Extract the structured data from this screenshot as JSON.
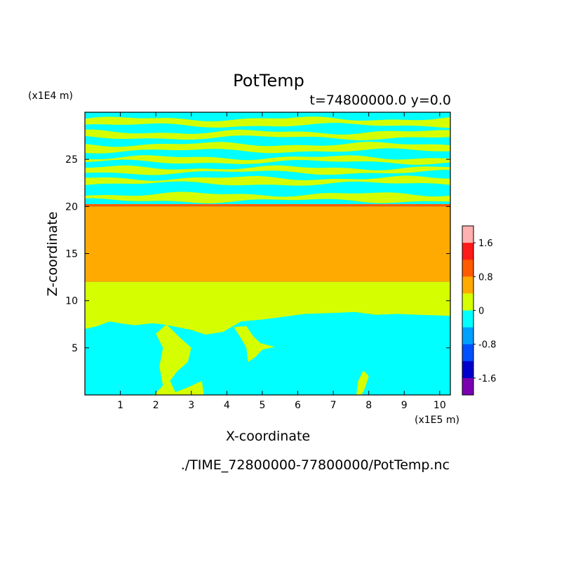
{
  "chart_data": {
    "type": "heatmap",
    "title": "PotTemp",
    "subtitle": "t=74800000.0  y=0.0",
    "xlabel": "X-coordinate",
    "ylabel": "Z-coordinate",
    "x_unit": "(x1E5 m)",
    "y_unit": "(x1E4 m)",
    "xlim": [
      0,
      10.3
    ],
    "ylim": [
      0,
      30
    ],
    "x_ticks": [
      "1",
      "2",
      "3",
      "4",
      "5",
      "6",
      "7",
      "8",
      "9",
      "10"
    ],
    "y_ticks": [
      "5",
      "10",
      "15",
      "20",
      "25"
    ],
    "file_label": "./TIME_72800000-77800000/PotTemp.nc",
    "colorbar": {
      "labels": [
        "1.6",
        "0.8",
        "0",
        "-0.8",
        "-1.6"
      ],
      "levels": [
        {
          "range": [
            1.6,
            2.0
          ],
          "color": "#ffb0b0"
        },
        {
          "range": [
            1.2,
            1.6
          ],
          "color": "#ff1a1a"
        },
        {
          "range": [
            0.8,
            1.2
          ],
          "color": "#ff5a00"
        },
        {
          "range": [
            0.4,
            0.8
          ],
          "color": "#ffaa00"
        },
        {
          "range": [
            0.0,
            0.4
          ],
          "color": "#d5ff00"
        },
        {
          "range": [
            -0.4,
            0.0
          ],
          "color": "#00ffff"
        },
        {
          "range": [
            -0.8,
            -0.4
          ],
          "color": "#00a0ff"
        },
        {
          "range": [
            -1.2,
            -0.8
          ],
          "color": "#0050ff"
        },
        {
          "range": [
            -1.6,
            -1.2
          ],
          "color": "#0000cc"
        },
        {
          "range": [
            -2.0,
            -1.6
          ],
          "color": "#7a00b0"
        }
      ]
    },
    "regions": [
      {
        "name": "upper-banded-layer",
        "z_range": [
          20.2,
          30
        ],
        "values": "alternating cyan (-0.4 to 0) and yellow-green (0 to 0.4) horizontal bands"
      },
      {
        "name": "thin-red-orange-layer",
        "z_range": [
          20.0,
          20.2
        ],
        "level": "0.8 to 1.2"
      },
      {
        "name": "orange-layer",
        "z_range": [
          12,
          20
        ],
        "level": "0.4 to 0.8"
      },
      {
        "name": "yellow-green-layer",
        "z_range": [
          7,
          12
        ],
        "level": "0 to 0.4"
      },
      {
        "name": "lower-cyan-layer",
        "z_range": [
          0,
          8.5
        ],
        "level": "-0.4 to 0"
      }
    ],
    "yellow_bands_z": [
      [
        28.6,
        29.3
      ],
      [
        27.3,
        27.9
      ],
      [
        25.9,
        26.6
      ],
      [
        24.7,
        25.2
      ],
      [
        23.6,
        24.1
      ],
      [
        22.4,
        23.0
      ],
      [
        20.6,
        21.3
      ]
    ],
    "cyan_layer_top_z": [
      [
        0.0,
        7.0
      ],
      [
        0.35,
        7.3
      ],
      [
        0.7,
        7.8
      ],
      [
        1.0,
        7.6
      ],
      [
        1.4,
        7.4
      ],
      [
        1.9,
        7.6
      ],
      [
        2.2,
        7.5
      ],
      [
        2.6,
        7.2
      ],
      [
        3.0,
        6.9
      ],
      [
        3.4,
        6.4
      ],
      [
        3.9,
        6.7
      ],
      [
        4.4,
        7.8
      ],
      [
        5.0,
        8.0
      ],
      [
        5.6,
        8.3
      ],
      [
        6.2,
        8.6
      ],
      [
        7.0,
        8.7
      ],
      [
        7.6,
        8.8
      ],
      [
        8.2,
        8.5
      ],
      [
        8.8,
        8.6
      ],
      [
        9.4,
        8.5
      ],
      [
        10.3,
        8.4
      ]
    ],
    "yellow_intrusions": [
      {
        "name": "intrusion-x2-3",
        "outline": [
          [
            2.0,
            6.5
          ],
          [
            2.3,
            7.5
          ],
          [
            2.7,
            6.0
          ],
          [
            3.0,
            5.0
          ],
          [
            2.9,
            3.5
          ],
          [
            2.6,
            2.5
          ],
          [
            2.4,
            1.5
          ],
          [
            2.55,
            0.3
          ],
          [
            2.9,
            0.8
          ],
          [
            3.3,
            1.5
          ],
          [
            3.35,
            0.0
          ],
          [
            1.95,
            0.0
          ],
          [
            2.2,
            1.0
          ],
          [
            2.1,
            3.0
          ],
          [
            2.2,
            5.0
          ]
        ]
      },
      {
        "name": "intrusion-x4-5",
        "outline": [
          [
            4.2,
            7.2
          ],
          [
            4.4,
            6.0
          ],
          [
            4.55,
            5.0
          ],
          [
            4.6,
            3.5
          ],
          [
            4.8,
            4.0
          ],
          [
            5.0,
            4.8
          ],
          [
            5.35,
            5.1
          ],
          [
            4.95,
            5.5
          ],
          [
            4.75,
            6.2
          ],
          [
            4.55,
            7.3
          ]
        ]
      },
      {
        "name": "intrusion-x7-8",
        "outline": [
          [
            7.65,
            0.0
          ],
          [
            7.7,
            1.5
          ],
          [
            7.85,
            2.6
          ],
          [
            8.0,
            2.0
          ],
          [
            7.9,
            0.8
          ],
          [
            7.8,
            0.0
          ]
        ]
      }
    ]
  }
}
